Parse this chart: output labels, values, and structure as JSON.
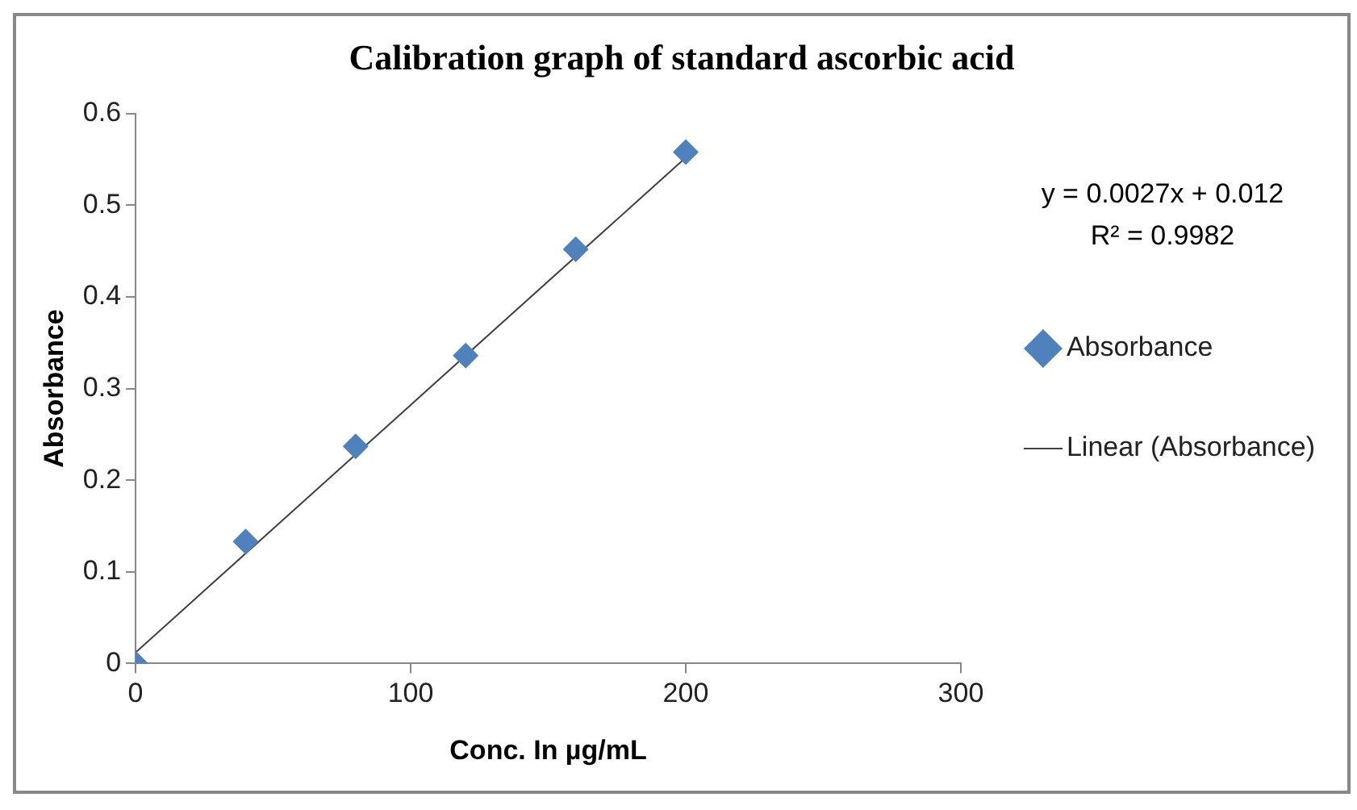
{
  "chart_data": {
    "type": "scatter",
    "title": "Calibration graph of standard ascorbic acid",
    "xlabel": "Conc. In µg/mL",
    "ylabel": "Absorbance",
    "x": [
      0,
      40,
      80,
      120,
      160,
      200
    ],
    "series": [
      {
        "name": "Absorbance",
        "color": "#4f81bd",
        "marker": "diamond",
        "values": [
          0,
          0.133,
          0.237,
          0.336,
          0.452,
          0.558
        ]
      },
      {
        "name": "Linear (Absorbance)",
        "type": "line",
        "color": "#404040",
        "marker": "none",
        "x": [
          0,
          200
        ],
        "values": [
          0.012,
          0.552
        ]
      }
    ],
    "xlim": [
      0,
      300
    ],
    "xticks": [
      0,
      100,
      200,
      300
    ],
    "ylim": [
      0,
      0.6
    ],
    "yticks": [
      0,
      0.1,
      0.2,
      0.3,
      0.4,
      0.5,
      0.6
    ],
    "grid": false,
    "legend": "right",
    "annotations": [
      "y = 0.0027x + 0.012",
      "R² = 0.9982"
    ]
  }
}
